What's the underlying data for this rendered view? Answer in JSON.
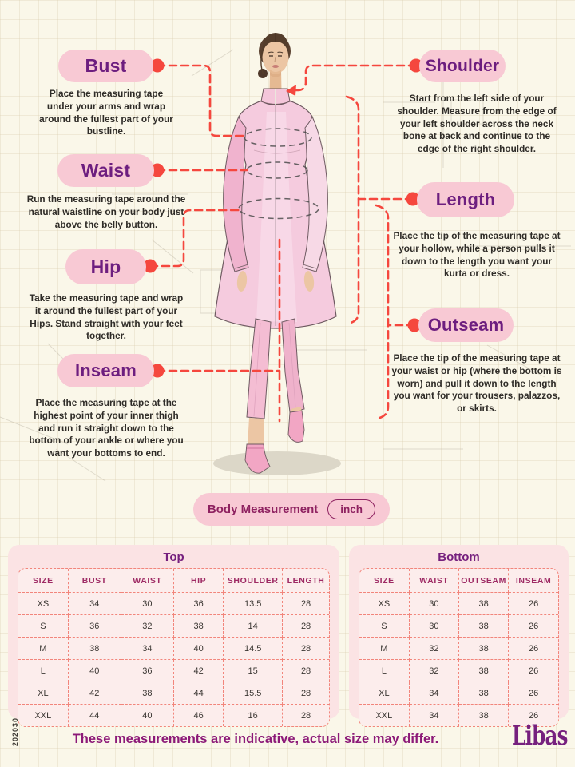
{
  "sections": {
    "bust": {
      "label": "Bust",
      "description": "Place the measuring tape under your arms and wrap around the fullest part of your bustline."
    },
    "waist": {
      "label": "Waist",
      "description": "Run the measuring tape around the natural waistline on your body just above the belly button."
    },
    "hip": {
      "label": "Hip",
      "description": "Take the measuring tape and wrap it around the fullest part of your Hips. Stand straight with your feet together."
    },
    "inseam": {
      "label": "Inseam",
      "description": "Place the measuring tape at the highest point of your inner thigh and run it straight down to the bottom of your ankle or where you want your bottoms to end."
    },
    "shoulder": {
      "label": "Shoulder",
      "description": "Start from the left side of your shoulder. Measure from the edge of your left shoulder across the neck bone at back and continue to the edge of the right shoulder."
    },
    "length": {
      "label": "Length",
      "description": "Place the tip of the measuring tape at your hollow, while a person pulls it down to the length you want your kurta or dress."
    },
    "outseam": {
      "label": "Outseam",
      "description": "Place the tip of the measuring tape at your waist or hip (where the bottom is worn) and pull it down to the length you want for your trousers, palazzos, or skirts."
    }
  },
  "unit_banner": {
    "label": "Body Measurement",
    "unit": "inch"
  },
  "tables": {
    "top": {
      "title": "Top",
      "headers": [
        "SIZE",
        "BUST",
        "WAIST",
        "HIP",
        "SHOULDER",
        "LENGTH"
      ],
      "rows": [
        [
          "XS",
          "34",
          "30",
          "36",
          "13.5",
          "28"
        ],
        [
          "S",
          "36",
          "32",
          "38",
          "14",
          "28"
        ],
        [
          "M",
          "38",
          "34",
          "40",
          "14.5",
          "28"
        ],
        [
          "L",
          "40",
          "36",
          "42",
          "15",
          "28"
        ],
        [
          "XL",
          "42",
          "38",
          "44",
          "15.5",
          "28"
        ],
        [
          "XXL",
          "44",
          "40",
          "46",
          "16",
          "28"
        ]
      ]
    },
    "bottom": {
      "title": "Bottom",
      "headers": [
        "SIZE",
        "WAIST",
        "OUTSEAM",
        "INSEAM"
      ],
      "rows": [
        [
          "XS",
          "30",
          "38",
          "26"
        ],
        [
          "S",
          "30",
          "38",
          "26"
        ],
        [
          "M",
          "32",
          "38",
          "26"
        ],
        [
          "L",
          "32",
          "38",
          "26"
        ],
        [
          "XL",
          "34",
          "38",
          "26"
        ],
        [
          "XXL",
          "34",
          "38",
          "26"
        ]
      ]
    }
  },
  "footer": {
    "note": "These measurements are indicative, actual size may differ.",
    "brand": "Libas",
    "side_code": "202030"
  },
  "colors": {
    "background": "#FAF7E9",
    "pill_pink": "#F8C9D4",
    "pill_text": "#6D1E7F",
    "connector_red": "#F5473E",
    "panel_pink": "#FBE3E4",
    "cell_pink": "#FCEDEC",
    "table_dash": "#F2857B",
    "header_text": "#9E2A64",
    "footer_text": "#8C1A78",
    "brand_purple": "#76207E"
  }
}
